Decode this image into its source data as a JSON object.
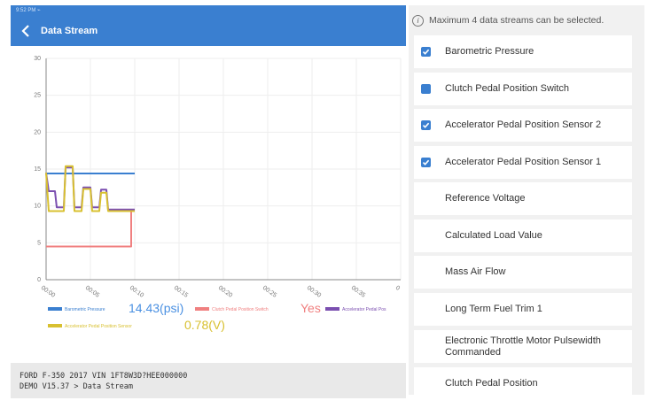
{
  "status_bar": {
    "text": "9:52 PM ⌁"
  },
  "header": {
    "title": "Data Stream"
  },
  "notice": {
    "icon": "info-icon",
    "text": "Maximum 4 data streams can be selected."
  },
  "streams": [
    {
      "label": "Barometric Pressure",
      "checked": true,
      "style": "checked"
    },
    {
      "label": "Clutch Pedal Position Switch",
      "checked": true,
      "style": "square"
    },
    {
      "label": "Accelerator Pedal Position Sensor 2",
      "checked": true,
      "style": "checked"
    },
    {
      "label": "Accelerator Pedal Position Sensor 1",
      "checked": true,
      "style": "checked"
    },
    {
      "label": "Reference Voltage",
      "checked": false,
      "style": "empty"
    },
    {
      "label": "Calculated Load Value",
      "checked": false,
      "style": "empty"
    },
    {
      "label": "Mass Air Flow",
      "checked": false,
      "style": "empty"
    },
    {
      "label": "Long Term Fuel Trim 1",
      "checked": false,
      "style": "empty"
    },
    {
      "label": "Electronic Throttle Motor Pulsewidth Commanded",
      "checked": false,
      "style": "empty"
    },
    {
      "label": "Clutch Pedal Position",
      "checked": false,
      "style": "empty"
    }
  ],
  "legend": [
    {
      "name": "Barometric Pressure",
      "color": "#3a7fd0",
      "value": "14.43(psi)",
      "value_color": "#4a90e2"
    },
    {
      "name": "Clutch Pedal Position Switch",
      "color": "#f08080",
      "value": "Yes",
      "value_color": "#f08080"
    },
    {
      "name": "Accelerator Pedal Pos",
      "color": "#7b4fb0",
      "value": "",
      "value_color": "#7b4fb0"
    },
    {
      "name": "Accelerator Pedal Position Sensor",
      "color": "#d8c030",
      "value": "0.78(V)",
      "value_color": "#d8c030"
    }
  ],
  "footer": {
    "line1": "FORD  F-350  2017  VIN  1FT8W3D?HEE000000",
    "line2": "DEMO V15.37 > Data Stream"
  },
  "chart_data": {
    "type": "line",
    "ylim": [
      0,
      30
    ],
    "y_ticks": [
      "0",
      "5",
      "10",
      "15",
      "20",
      "25",
      "30"
    ],
    "x_ticks": [
      "00:00",
      "00:05",
      "00:10",
      "00:15",
      "00:20",
      "00:25",
      "00:30",
      "00:35",
      "0"
    ],
    "series": [
      {
        "name": "Barometric Pressure",
        "color": "#3a7fd0",
        "points": [
          [
            0,
            14.4
          ],
          [
            10,
            14.4
          ]
        ]
      },
      {
        "name": "Clutch Pedal Position Switch",
        "color": "#f08080",
        "points": [
          [
            0,
            4.5
          ],
          [
            9.6,
            4.5
          ],
          [
            9.6,
            9.3
          ],
          [
            10,
            9.3
          ]
        ]
      },
      {
        "name": "Accelerator Pedal Pos",
        "color": "#7b4fb0",
        "points": [
          [
            0,
            14.5
          ],
          [
            0.3,
            12
          ],
          [
            1,
            12
          ],
          [
            1.2,
            9.8
          ],
          [
            2,
            9.8
          ],
          [
            2.2,
            15.2
          ],
          [
            3,
            15.2
          ],
          [
            3.2,
            9.8
          ],
          [
            4,
            9.8
          ],
          [
            4.2,
            12.5
          ],
          [
            5,
            12.5
          ],
          [
            5.2,
            9.8
          ],
          [
            6,
            9.8
          ],
          [
            6.2,
            12.2
          ],
          [
            6.8,
            12.2
          ],
          [
            7,
            9.5
          ],
          [
            10,
            9.5
          ]
        ]
      },
      {
        "name": "Accelerator Pedal Position Sensor",
        "color": "#d8c030",
        "points": [
          [
            0,
            14.5
          ],
          [
            0.3,
            9.3
          ],
          [
            1,
            9.3
          ],
          [
            1.2,
            9.3
          ],
          [
            2,
            9.3
          ],
          [
            2.2,
            15.4
          ],
          [
            3,
            15.4
          ],
          [
            3.2,
            9.3
          ],
          [
            4,
            9.3
          ],
          [
            4.2,
            12.3
          ],
          [
            5,
            12.3
          ],
          [
            5.2,
            9.3
          ],
          [
            6,
            9.3
          ],
          [
            6.2,
            11.8
          ],
          [
            6.8,
            11.8
          ],
          [
            7,
            9.3
          ],
          [
            10,
            9.3
          ]
        ]
      }
    ]
  }
}
